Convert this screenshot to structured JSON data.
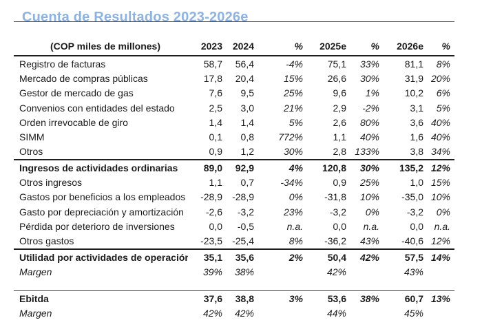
{
  "title": "Cuenta de Resultados 2023-2026e",
  "colors": {
    "title_blue": "#8CB3E3",
    "text": "#1b1b1b",
    "rule": "#1e1e1e"
  },
  "table": {
    "unit_label": "(COP miles de millones)",
    "columns": [
      "2023",
      "2024",
      "%",
      "2025e",
      "%",
      "2026e",
      "%"
    ],
    "rows": [
      {
        "label": "Registro de facturas",
        "values": [
          "58,7",
          "56,4",
          "-4%",
          "75,1",
          "33%",
          "81,1",
          "8%"
        ]
      },
      {
        "label": "Mercado de compras públicas",
        "values": [
          "17,8",
          "20,4",
          "15%",
          "26,6",
          "30%",
          "31,9",
          "20%"
        ]
      },
      {
        "label": "Gestor de mercado de gas",
        "values": [
          "7,6",
          "9,5",
          "25%",
          "9,6",
          "1%",
          "10,2",
          "6%"
        ]
      },
      {
        "label": "Convenios con entidades del estado",
        "values": [
          "2,5",
          "3,0",
          "21%",
          "2,9",
          "-2%",
          "3,1",
          "5%"
        ]
      },
      {
        "label": "Orden irrevocable de giro",
        "values": [
          "1,4",
          "1,4",
          "5%",
          "2,6",
          "80%",
          "3,6",
          "40%"
        ]
      },
      {
        "label": "SIMM",
        "values": [
          "0,1",
          "0,8",
          "772%",
          "1,1",
          "40%",
          "1,6",
          "40%"
        ]
      },
      {
        "label": "Otros",
        "values": [
          "0,9",
          "1,2",
          "30%",
          "2,8",
          "133%",
          "3,8",
          "34%"
        ],
        "sep": true
      },
      {
        "label": "Ingresos de actividades ordinarias",
        "values": [
          "89,0",
          "92,9",
          "4%",
          "120,8",
          "30%",
          "135,2",
          "12%"
        ],
        "type": "total"
      },
      {
        "label": "Otros ingresos",
        "values": [
          "1,1",
          "0,7",
          "-34%",
          "0,9",
          "25%",
          "1,0",
          "15%"
        ]
      },
      {
        "label": "Gastos por beneficios a los empleados",
        "values": [
          "-28,9",
          "-28,9",
          "0%",
          "-31,8",
          "10%",
          "-35,0",
          "10%"
        ]
      },
      {
        "label": "Gasto por depreciación y amortización",
        "values": [
          "-2,6",
          "-3,2",
          "23%",
          "-3,2",
          "0%",
          "-3,2",
          "0%"
        ]
      },
      {
        "label": "Pérdida por deterioro de inversiones",
        "values": [
          "0,0",
          "-0,5",
          "n.a.",
          "0,0",
          "n.a.",
          "0,0",
          "n.a."
        ]
      },
      {
        "label": "Otros gastos",
        "values": [
          "-23,5",
          "-25,4",
          "8%",
          "-36,2",
          "43%",
          "-40,6",
          "12%"
        ],
        "sep": true
      },
      {
        "label": "Utilidad por actividades de operación",
        "values": [
          "35,1",
          "35,6",
          "2%",
          "50,4",
          "42%",
          "57,5",
          "14%"
        ],
        "type": "total"
      },
      {
        "label": "Margen",
        "values": [
          "39%",
          "38%",
          "",
          "42%",
          "",
          "43%",
          ""
        ],
        "type": "margin"
      },
      {
        "type": "spacer"
      },
      {
        "label": "Ebitda",
        "values": [
          "37,6",
          "38,8",
          "3%",
          "53,6",
          "38%",
          "60,7",
          "13%"
        ],
        "type": "total"
      },
      {
        "label": "Margen",
        "values": [
          "42%",
          "42%",
          "",
          "44%",
          "",
          "45%",
          ""
        ],
        "type": "margin"
      }
    ]
  }
}
